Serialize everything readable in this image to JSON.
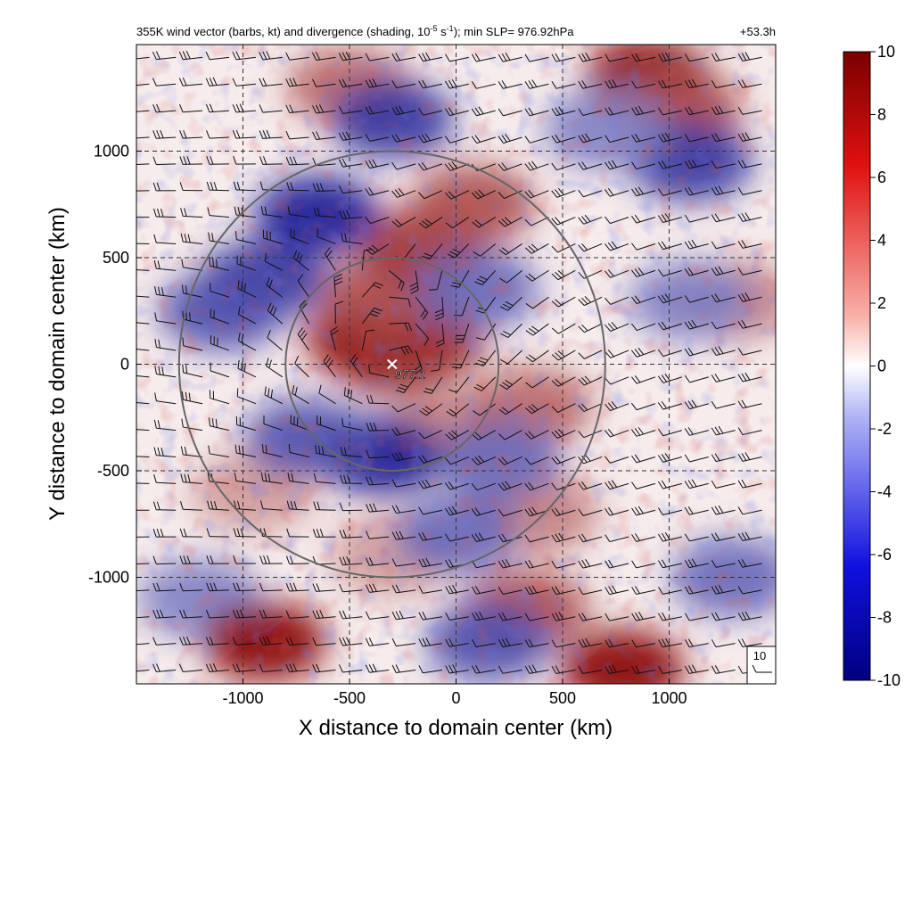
{
  "chart_data": {
    "type": "heatmap",
    "title_main": "355K wind vector (barbs, kt) and divergence (shading, 10",
    "title_exp": "-5",
    "title_mid": " s",
    "title_exp2": "-1",
    "title_tail": "); min SLP= 976.92hPa",
    "time_label": "+53.3h",
    "xlabel": "X distance to domain center (km)",
    "ylabel": "Y distance to domain center (km)",
    "xlim": [
      -1500,
      1500
    ],
    "ylim": [
      -1500,
      1500
    ],
    "x_ticks": [
      -1000,
      -500,
      0,
      500,
      1000
    ],
    "y_ticks": [
      -1000,
      -500,
      0,
      500,
      1000
    ],
    "x_tick_labels": [
      "-1000",
      "-500",
      "0",
      "500",
      "1000"
    ],
    "y_tick_labels": [
      "-1000",
      "-500",
      "0",
      "500",
      "1000"
    ],
    "grid": true,
    "colorbar": {
      "range": [
        -10,
        10
      ],
      "ticks": [
        10,
        8,
        6,
        4,
        2,
        0,
        -2,
        -4,
        -6,
        -8,
        -10
      ],
      "tick_labels": [
        "10",
        "8",
        "6",
        "4",
        "2",
        "0",
        "-2",
        "-4",
        "-6",
        "-8",
        "-10"
      ],
      "low_color": "#00008b",
      "mid_color": "#ffffff",
      "high_color": "#8b0000"
    },
    "storm_center": {
      "x": -300,
      "y": 0,
      "label": "977.1"
    },
    "range_circles_km": [
      500,
      1000
    ],
    "reference_barb_label": "10",
    "features": [
      {
        "x": -300,
        "y": 50,
        "value": 10
      },
      {
        "x": -420,
        "y": 120,
        "value": 9
      },
      {
        "x": -150,
        "y": 100,
        "value": 8
      },
      {
        "x": -330,
        "y": 330,
        "value": 7
      },
      {
        "x": -150,
        "y": 550,
        "value": 8
      },
      {
        "x": 80,
        "y": 750,
        "value": 7
      },
      {
        "x": 900,
        "y": 1350,
        "value": 10
      },
      {
        "x": 1050,
        "y": 1200,
        "value": 7
      },
      {
        "x": -50,
        "y": -300,
        "value": 5
      },
      {
        "x": 350,
        "y": -200,
        "value": 6
      },
      {
        "x": 380,
        "y": -700,
        "value": 5
      },
      {
        "x": 330,
        "y": -1150,
        "value": 7
      },
      {
        "x": -500,
        "y": 1300,
        "value": 6
      },
      {
        "x": -950,
        "y": -600,
        "value": 4
      },
      {
        "x": -300,
        "y": -900,
        "value": 4
      },
      {
        "x": 1300,
        "y": 300,
        "value": 5
      },
      {
        "x": -650,
        "y": 700,
        "value": -9
      },
      {
        "x": -900,
        "y": 400,
        "value": -8
      },
      {
        "x": -1100,
        "y": 250,
        "value": -7
      },
      {
        "x": -300,
        "y": 1150,
        "value": -8
      },
      {
        "x": -350,
        "y": -430,
        "value": -9
      },
      {
        "x": -700,
        "y": -350,
        "value": -7
      },
      {
        "x": 100,
        "y": 350,
        "value": -6
      },
      {
        "x": 200,
        "y": -450,
        "value": -6
      },
      {
        "x": 0,
        "y": -800,
        "value": -6
      },
      {
        "x": 150,
        "y": -1300,
        "value": -7
      },
      {
        "x": 1100,
        "y": 950,
        "value": -8
      },
      {
        "x": 1300,
        "y": -1000,
        "value": -6
      },
      {
        "x": 700,
        "y": 1100,
        "value": -5
      },
      {
        "x": -1200,
        "y": -1100,
        "value": -5
      },
      {
        "x": 1100,
        "y": 300,
        "value": -5
      },
      {
        "x": -900,
        "y": -1300,
        "value": 10
      },
      {
        "x": 780,
        "y": -1430,
        "value": 10
      }
    ]
  }
}
